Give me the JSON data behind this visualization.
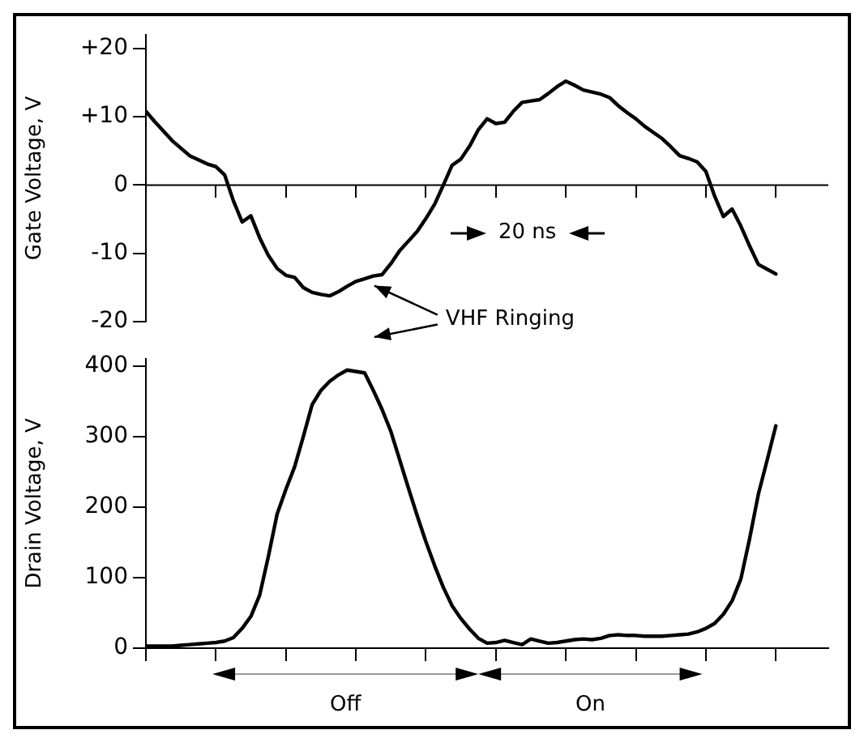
{
  "chart_data": [
    {
      "type": "line",
      "ylabel": "Gate Voltage, V",
      "ylim": [
        -20,
        22
      ],
      "categories": [
        null,
        null,
        null,
        null,
        null,
        null,
        null,
        null,
        null,
        null,
        null,
        null,
        null,
        null,
        null,
        null,
        null,
        null,
        null,
        null,
        null,
        null,
        null,
        null,
        null,
        null,
        null,
        null,
        null,
        null,
        null,
        null,
        null,
        null,
        null,
        null,
        null,
        null,
        null,
        null,
        null,
        null,
        null,
        null,
        null,
        null,
        null,
        null,
        null,
        null,
        null,
        null,
        null,
        null,
        null,
        null,
        null,
        null,
        null,
        null,
        null,
        null,
        null,
        null,
        null,
        null,
        null,
        null,
        null,
        null,
        null,
        null,
        null
      ],
      "yticks": [
        {
          "value": 20,
          "label": "+20"
        },
        {
          "value": 10,
          "label": "+10"
        },
        0,
        -10,
        -20
      ],
      "tick_labels": "y",
      "grid": false,
      "legend": false,
      "marker": "none",
      "line_style": "solid",
      "series": [
        {
          "color": "#000000",
          "values": [
            10.8,
            9.3,
            7.9,
            6.5,
            5.4,
            4.3,
            3.7,
            3.1,
            2.7,
            1.5,
            -2.3,
            -5.4,
            -4.5,
            -7.7,
            -10.3,
            -12.2,
            -13.2,
            -13.5,
            -15.0,
            -15.7,
            -16.0,
            -16.2,
            -15.6,
            -14.8,
            -14.1,
            -13.7,
            -13.3,
            -13.1,
            -11.5,
            -9.6,
            -8.2,
            -6.8,
            -4.9,
            -2.8,
            0,
            2.9,
            3.8,
            5.7,
            8.1,
            9.7,
            9.0,
            9.2,
            10.8,
            12.1,
            12.3,
            12.5,
            13.4,
            14.4,
            15.2,
            14.6,
            13.9,
            13.6,
            13.3,
            12.8,
            11.6,
            10.6,
            9.7,
            8.6,
            7.7,
            6.8,
            5.6,
            4.3,
            3.9,
            3.4,
            2.0,
            -1.6,
            -4.6,
            -3.5,
            -6.0,
            -8.9,
            -11.6,
            -12.3,
            -13.0
          ]
        }
      ],
      "ref_lines": [
        {
          "axis": "y",
          "value": 0
        }
      ],
      "annotations": [
        "VHF Ringing",
        "20 ns"
      ]
    },
    {
      "type": "line",
      "ylabel": "Drain Voltage, V",
      "ylim": [
        0,
        410
      ],
      "categories": [
        null,
        null,
        null,
        null,
        null,
        null,
        null,
        null,
        null,
        null,
        null,
        null,
        null,
        null,
        null,
        null,
        null,
        null,
        null,
        null,
        null,
        null,
        null,
        null,
        null,
        null,
        null,
        null,
        null,
        null,
        null,
        null,
        null,
        null,
        null,
        null,
        null,
        null,
        null,
        null,
        null,
        null,
        null,
        null,
        null,
        null,
        null,
        null,
        null,
        null,
        null,
        null,
        null,
        null,
        null,
        null,
        null,
        null,
        null,
        null,
        null,
        null,
        null,
        null,
        null,
        null,
        null,
        null,
        null,
        null,
        null,
        null,
        null
      ],
      "yticks": [
        0,
        100,
        200,
        300,
        400
      ],
      "tick_labels": "y",
      "grid": false,
      "legend": false,
      "marker": "none",
      "line_style": "solid",
      "series": [
        {
          "color": "#000000",
          "values": [
            3,
            3,
            3,
            3,
            4,
            5,
            6,
            7,
            8,
            10,
            15,
            28,
            45,
            75,
            130,
            190,
            225,
            257,
            300,
            345,
            365,
            378,
            387,
            394,
            392,
            390,
            365,
            338,
            307,
            267,
            227,
            188,
            151,
            117,
            86,
            60,
            42,
            27,
            14,
            7,
            8,
            11,
            8,
            5,
            13,
            10,
            7,
            8,
            10,
            12,
            13,
            12,
            14,
            18,
            19,
            18,
            18,
            17,
            17,
            17,
            18,
            19,
            20,
            23,
            28,
            35,
            48,
            67,
            98,
            155,
            218,
            266,
            315
          ]
        }
      ],
      "annotations": [
        "Off",
        "On"
      ]
    }
  ]
}
